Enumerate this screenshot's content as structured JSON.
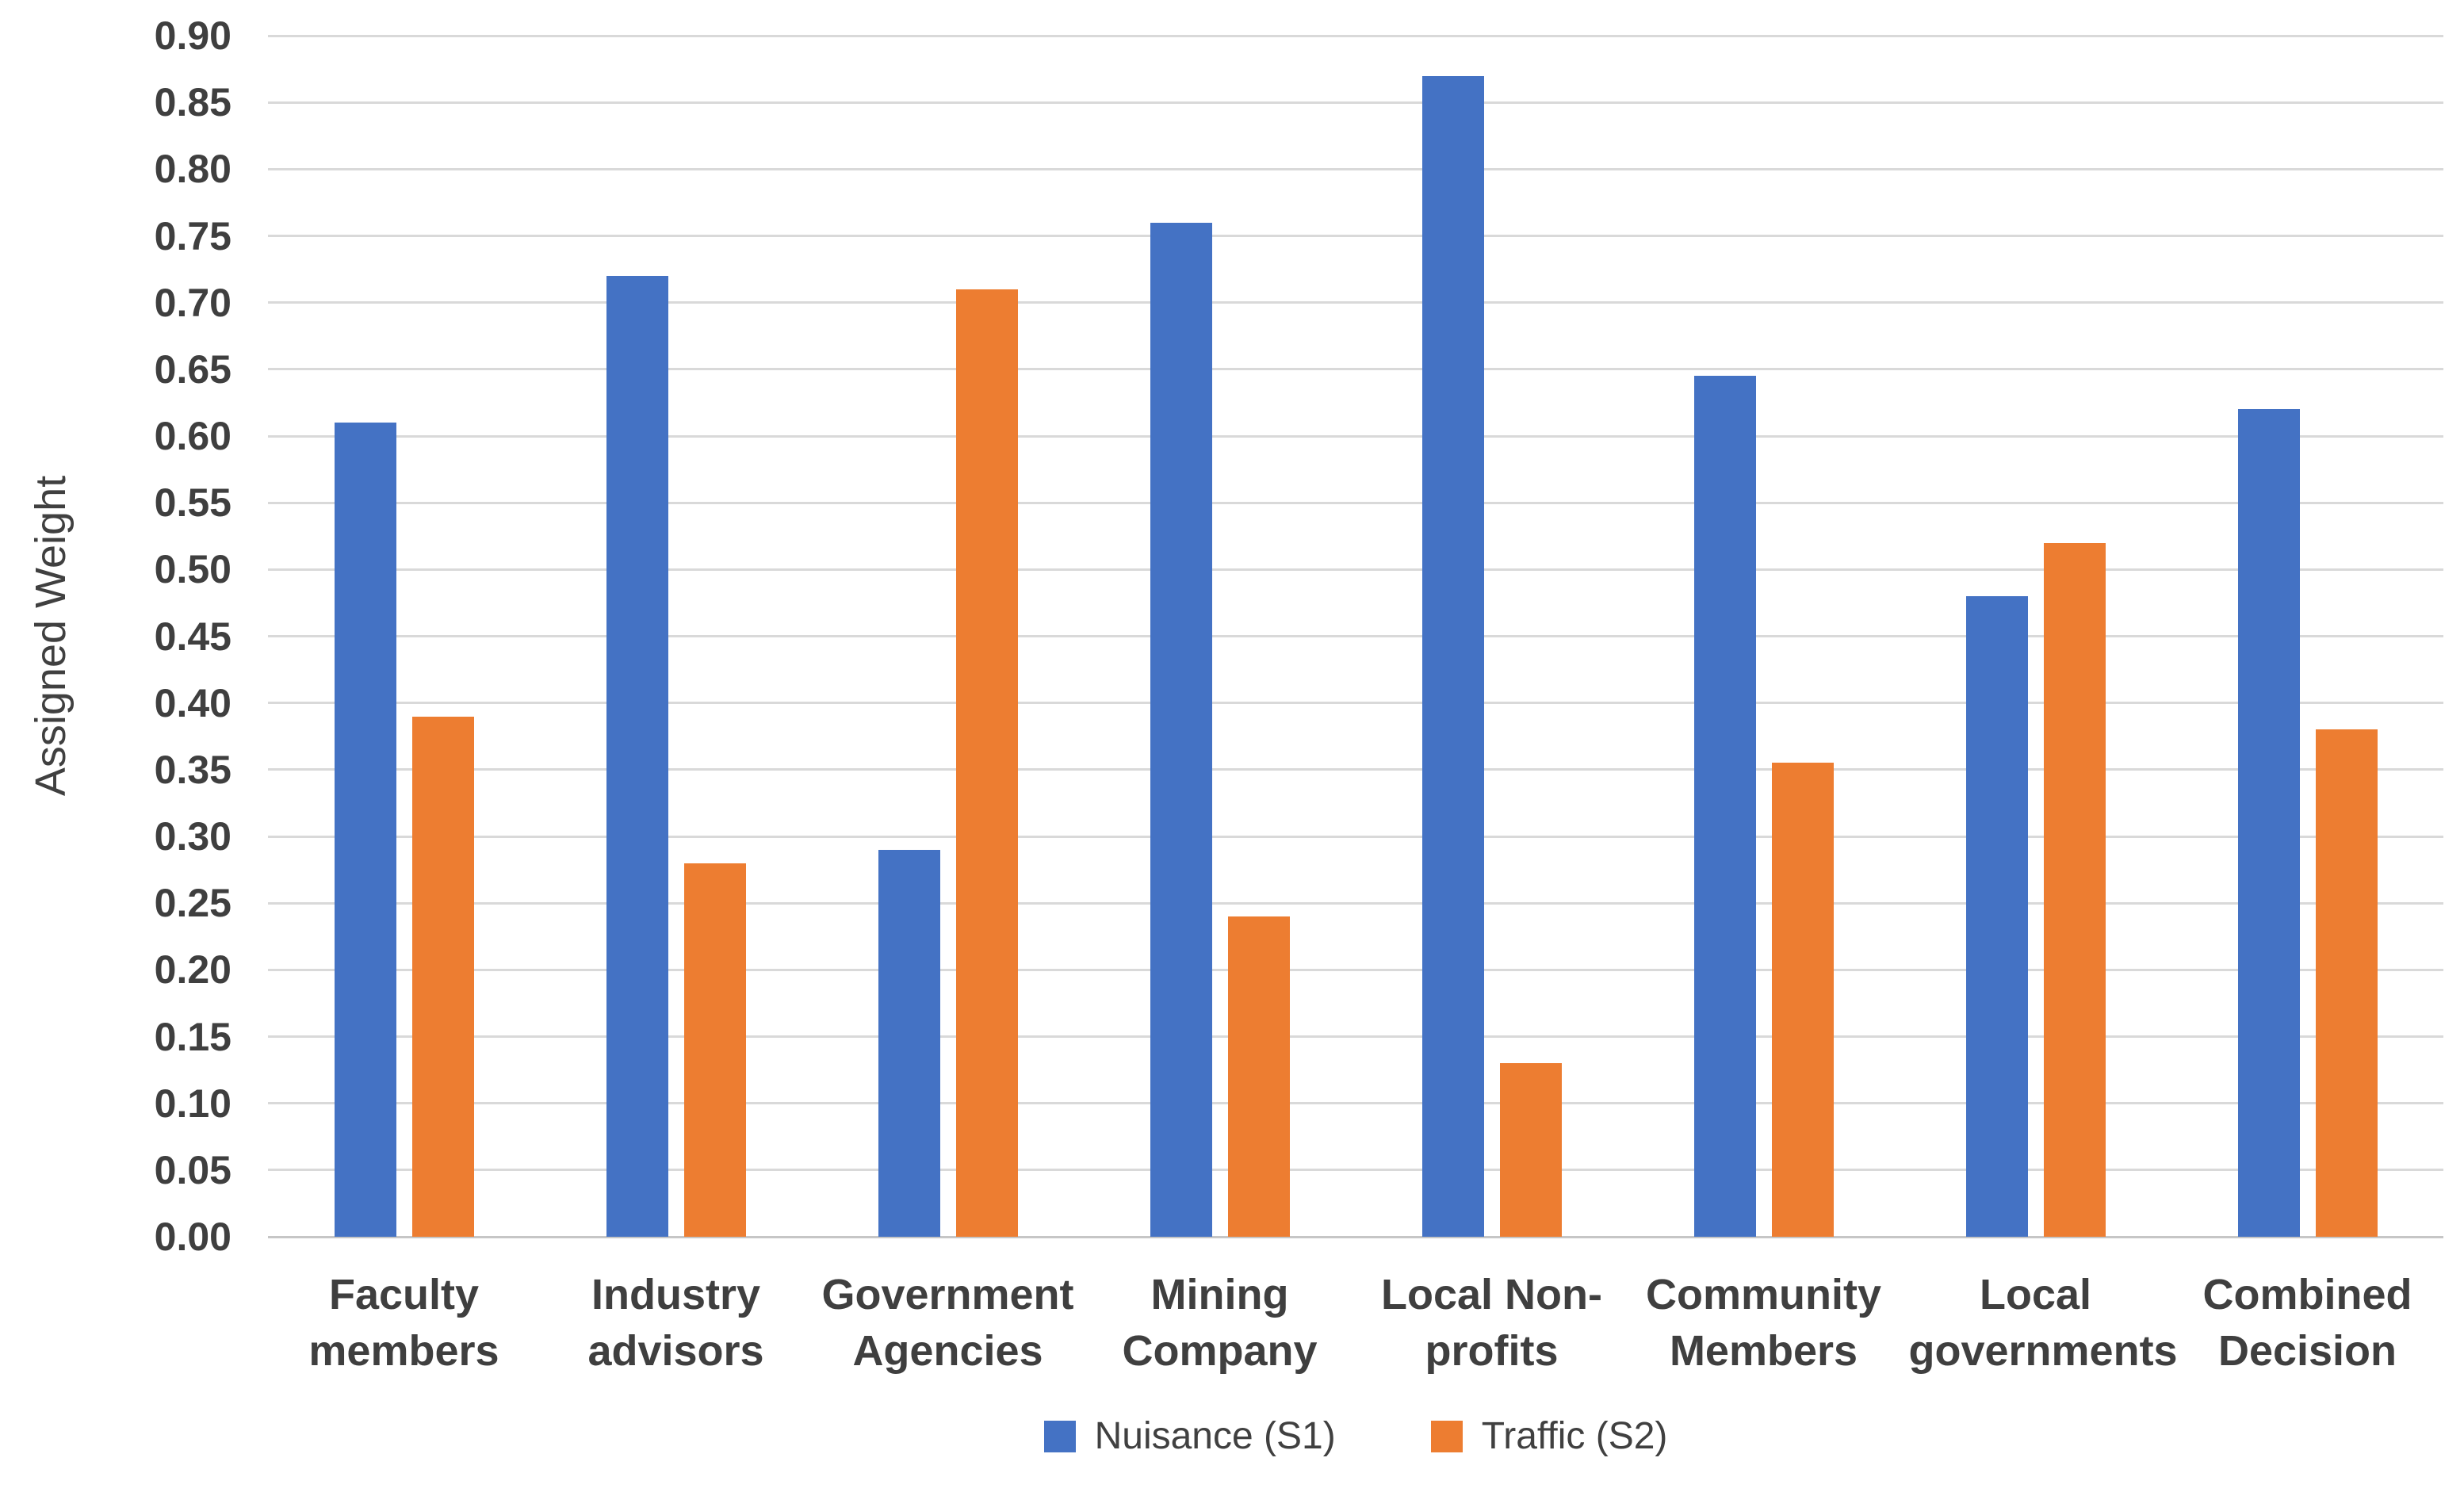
{
  "chart_data": {
    "type": "bar",
    "title": "",
    "xlabel": "",
    "ylabel": "Assigned Weight",
    "categories": [
      "Faculty members",
      "Industry advisors",
      "Government Agencies",
      "Mining Company",
      "Local Non-profits",
      "Community Members",
      "Local governments",
      "Combined Decision"
    ],
    "series": [
      {
        "name": "Nuisance (S1)",
        "color": "#4472C4",
        "values": [
          0.61,
          0.72,
          0.29,
          0.76,
          0.87,
          0.645,
          0.48,
          0.62
        ]
      },
      {
        "name": "Traffic (S2)",
        "color": "#ED7D31",
        "values": [
          0.39,
          0.28,
          0.71,
          0.24,
          0.13,
          0.355,
          0.52,
          0.38
        ]
      }
    ],
    "ylim": [
      0.0,
      0.9
    ],
    "ytick_step": 0.05,
    "yticks": [
      "0.90",
      "0.85",
      "0.80",
      "0.75",
      "0.70",
      "0.65",
      "0.60",
      "0.55",
      "0.50",
      "0.45",
      "0.40",
      "0.35",
      "0.30",
      "0.25",
      "0.20",
      "0.15",
      "0.10",
      "0.05",
      "0.00"
    ],
    "grid": true,
    "legend_position": "bottom",
    "colors": {
      "gridline": "#d9d9d9",
      "axis_text": "#3f3f3f",
      "legend_text": "#404040"
    }
  }
}
